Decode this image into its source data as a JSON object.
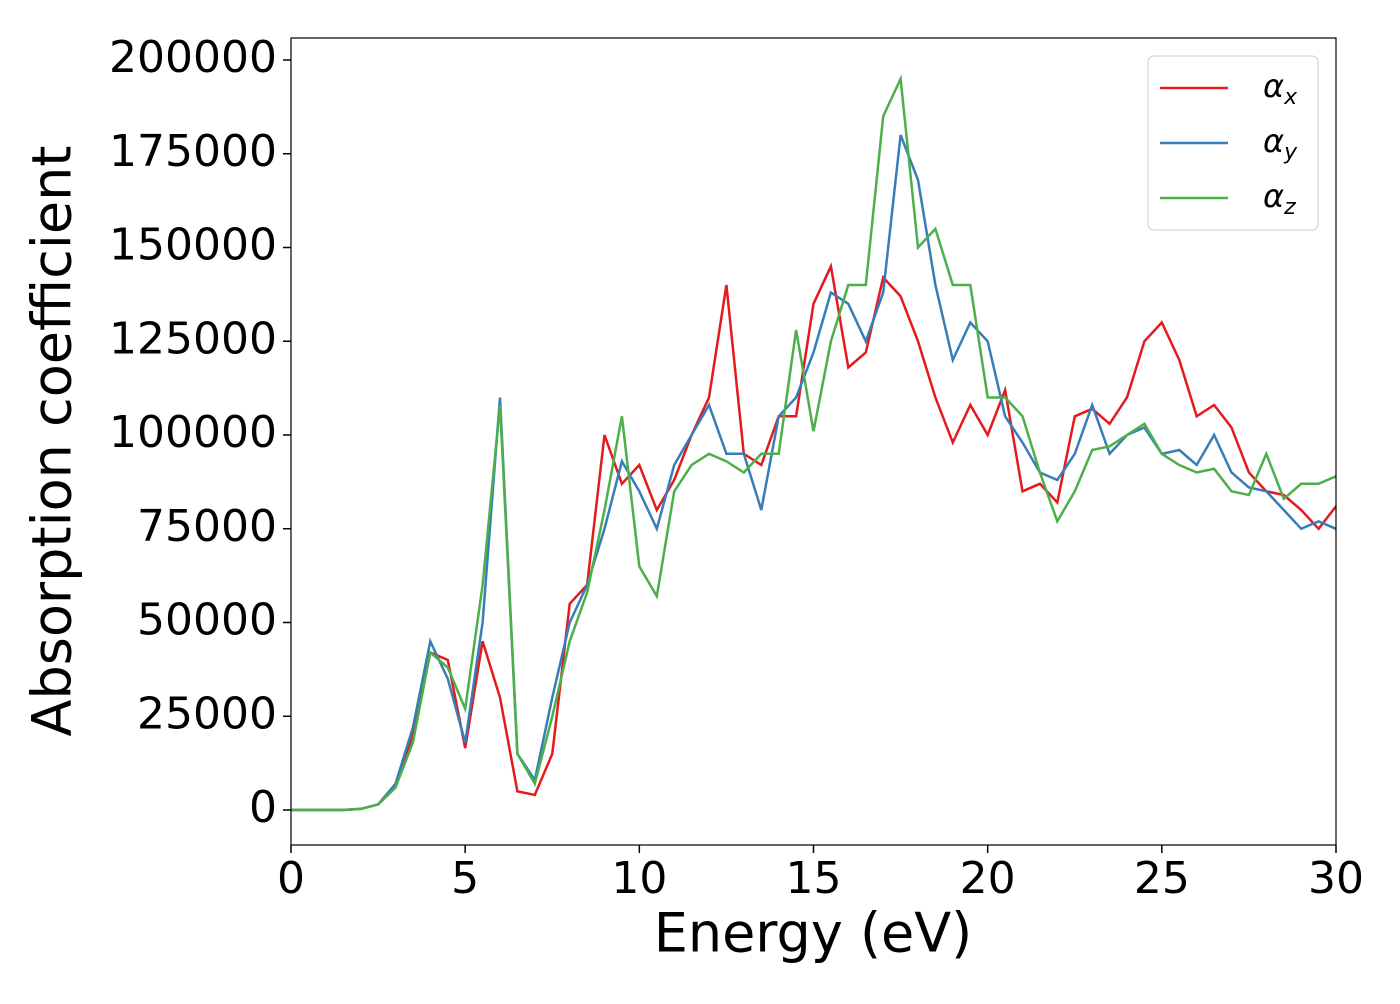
{
  "chart_data": {
    "type": "line",
    "xlabel": "Energy (eV)",
    "ylabel": "Absorption coefficient",
    "x": [
      0,
      0.5,
      1,
      1.5,
      2,
      2.5,
      3,
      3.5,
      4,
      4.5,
      5,
      5.5,
      6,
      6.5,
      7,
      7.5,
      8,
      8.5,
      9,
      9.5,
      10,
      10.5,
      11,
      11.5,
      12,
      12.5,
      13,
      13.5,
      14,
      14.5,
      15,
      15.5,
      16,
      16.5,
      17,
      17.5,
      18,
      18.5,
      19,
      19.5,
      20,
      20.5,
      21,
      21.5,
      22,
      22.5,
      23,
      23.5,
      24,
      24.5,
      25,
      25.5,
      26,
      26.5,
      27,
      27.5,
      28,
      28.5,
      29,
      29.5,
      30
    ],
    "series": [
      {
        "name": "αx",
        "color": "#e41a1c",
        "values": [
          0,
          0,
          0,
          0,
          300,
          1500,
          6000,
          20000,
          42000,
          40000,
          16500,
          45000,
          30000,
          5000,
          4000,
          15000,
          55000,
          60000,
          100000,
          87000,
          92000,
          80000,
          88000,
          100000,
          110000,
          140000,
          95000,
          92000,
          105000,
          105000,
          135000,
          145000,
          118000,
          122000,
          142000,
          137000,
          125000,
          110000,
          98000,
          108000,
          100000,
          112000,
          85000,
          87000,
          82000,
          105000,
          107000,
          103000,
          110000,
          125000,
          130000,
          120000,
          105000,
          108000,
          102000,
          90000,
          85000,
          84000,
          80000,
          75000,
          81000
        ]
      },
      {
        "name": "αy",
        "color": "#377eb8",
        "values": [
          0,
          0,
          0,
          0,
          300,
          1500,
          7000,
          22000,
          45000,
          35000,
          18000,
          50000,
          110000,
          15000,
          8000,
          30000,
          50000,
          60000,
          75000,
          93000,
          85000,
          75000,
          92000,
          100000,
          108000,
          95000,
          95000,
          80000,
          105000,
          110000,
          122000,
          138000,
          135000,
          125000,
          138000,
          180000,
          168000,
          140000,
          120000,
          130000,
          125000,
          105000,
          98000,
          90000,
          88000,
          95000,
          108000,
          95000,
          100000,
          102000,
          95000,
          96000,
          92000,
          100000,
          90000,
          86000,
          85000,
          80000,
          75000,
          77000,
          75000
        ]
      },
      {
        "name": "αz",
        "color": "#4daf4a",
        "values": [
          0,
          0,
          0,
          0,
          300,
          1500,
          6000,
          18000,
          42000,
          38000,
          27000,
          60000,
          108000,
          15000,
          7000,
          25000,
          45000,
          58000,
          80000,
          105000,
          65000,
          57000,
          85000,
          92000,
          95000,
          93000,
          90000,
          95000,
          95000,
          128000,
          101000,
          125000,
          140000,
          140000,
          185000,
          195000,
          150000,
          155000,
          140000,
          140000,
          110000,
          110000,
          105000,
          90000,
          77000,
          85000,
          96000,
          97000,
          100000,
          103000,
          95000,
          92000,
          90000,
          91000,
          85000,
          84000,
          95000,
          83000,
          87000,
          87000,
          89000
        ]
      }
    ],
    "xlim": [
      0,
      30
    ],
    "xticks": [
      0,
      5,
      10,
      15,
      20,
      25,
      30
    ],
    "ylim": [
      -9333,
      205867
    ],
    "yticks": [
      0,
      25000,
      50000,
      75000,
      100000,
      125000,
      150000,
      175000,
      200000
    ],
    "legend": "upper right"
  }
}
